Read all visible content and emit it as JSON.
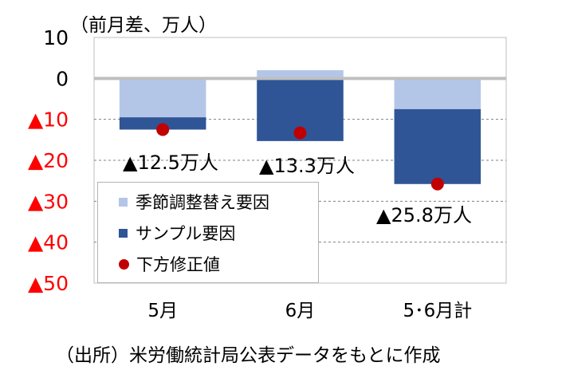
{
  "unit_label": "（前月差、万人）",
  "source_note": "（出所）米労働統計局公表データをもとに作成",
  "colors": {
    "seasonal": "#b4c6e7",
    "sample": "#2f5597",
    "total_marker": "#c00000",
    "negative_tick": "#ff0000",
    "positive_tick": "#000000",
    "zero_line": "#bfbfbf",
    "gridline": "#808080"
  },
  "chart_data": {
    "type": "bar",
    "stacked": true,
    "categories": [
      "5月",
      "6月",
      "5･6月計"
    ],
    "series": [
      {
        "name": "季節調整替え要因",
        "values": [
          -9.5,
          2.0,
          -7.5
        ]
      },
      {
        "name": "サンプル要因",
        "values": [
          -3.0,
          -15.3,
          -18.3
        ]
      }
    ],
    "markers": {
      "name": "下方修正値",
      "values": [
        -12.5,
        -13.3,
        -25.8
      ]
    },
    "data_labels": [
      "▲12.5万人",
      "▲13.3万人",
      "▲25.8万人"
    ],
    "ylim": [
      -50,
      10
    ],
    "yticks": [
      10,
      0,
      -10,
      -20,
      -30,
      -40,
      -50
    ],
    "ytick_labels": [
      "10",
      "0",
      "▲10",
      "▲20",
      "▲30",
      "▲40",
      "▲50"
    ],
    "grid": true,
    "legend_position": "lower-left",
    "title": "",
    "xlabel": "",
    "ylabel": ""
  }
}
